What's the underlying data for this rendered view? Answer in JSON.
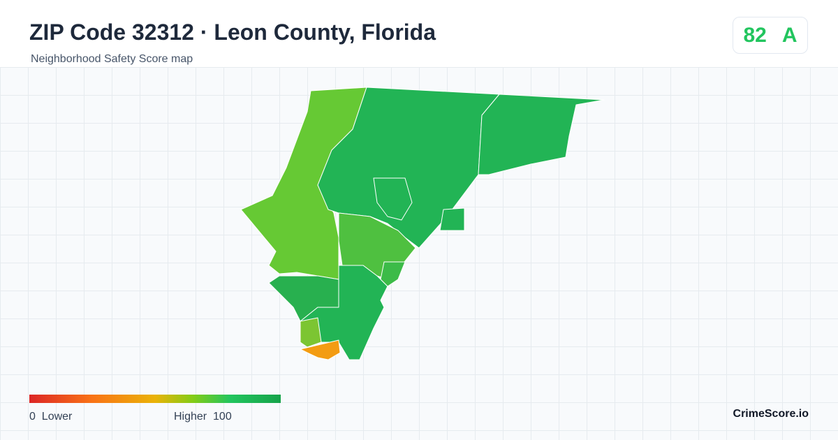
{
  "header": {
    "title": "ZIP Code 32312 · Leon County, Florida",
    "subtitle": "Neighborhood Safety Score map"
  },
  "score": {
    "value": 82,
    "grade": "A"
  },
  "legend": {
    "min": 0,
    "min_label": "Lower",
    "max_label": "Higher",
    "max": 100
  },
  "brand": "CrimeScore.io"
}
